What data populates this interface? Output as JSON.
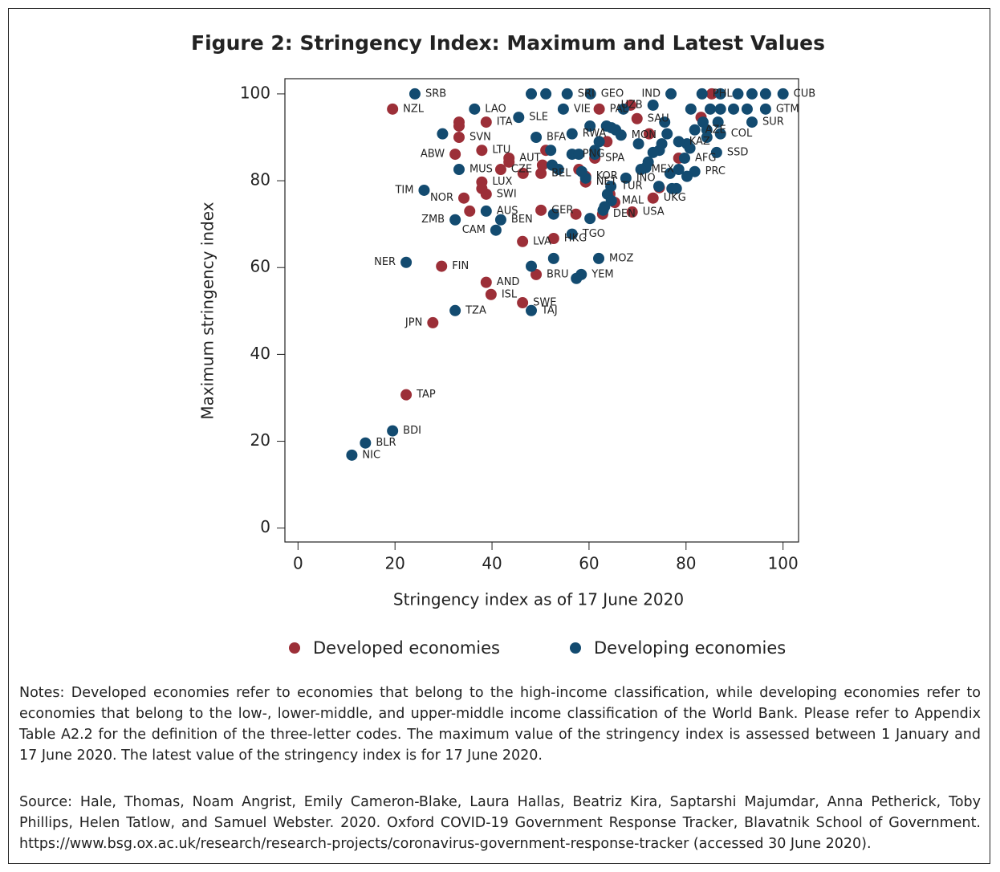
{
  "chart_data": {
    "type": "scatter",
    "title": "Figure 2: Stringency Index: Maximum and Latest Values",
    "xlabel": "Stringency index as of 17 June 2020",
    "ylabel": "Maximum stringency index",
    "xlim": [
      -2.7,
      103.2
    ],
    "ylim": [
      -3.2,
      103.5
    ],
    "xticks": [
      0,
      20,
      40,
      60,
      80,
      100
    ],
    "yticks": [
      0,
      20,
      40,
      60,
      80,
      100
    ],
    "series": [
      {
        "name": "Developed economies",
        "color": "#9c2f38",
        "x": [
          19.5,
          38.8,
          33.2,
          33.2,
          33.2,
          37.9,
          32.4,
          43.5,
          43.5,
          41.8,
          46.4,
          37.9,
          38.8,
          37.9,
          34.2,
          35.4,
          29.6,
          27.8,
          22.3,
          38.8,
          39.8,
          46.3,
          46.3,
          52.7,
          49.1,
          50.1,
          57.3,
          62.8,
          68.9,
          73.2,
          74.5,
          59.3,
          59.3,
          61.2,
          50.1,
          51.1,
          50.4,
          62.1,
          68.6,
          63.7,
          65.3,
          64.3,
          72.4,
          78.5,
          83.1,
          85.3,
          57.9,
          69.9
        ],
        "values": [
          96.5,
          93.5,
          93.5,
          92.6,
          90,
          87,
          86.1,
          85.2,
          84.3,
          82.6,
          81.7,
          79.7,
          76.9,
          78.2,
          76,
          73,
          60.3,
          47.3,
          30.7,
          56.6,
          53.8,
          51.9,
          66,
          66.7,
          58.4,
          73.2,
          72.3,
          72.3,
          72.8,
          76,
          78.4,
          81,
          79.7,
          85.2,
          81.7,
          87,
          83.6,
          96.5,
          97.4,
          89,
          75,
          76.9,
          90.8,
          85.2,
          94.6,
          100,
          82.6,
          94.3
        ],
        "labels": [
          "NZL",
          "ITA",
          null,
          null,
          "SVN",
          "LTU",
          "ABW",
          "AUT",
          null,
          "CZE",
          null,
          "LUX",
          "SWI",
          null,
          "NOR",
          null,
          "FIN",
          "JPN",
          "TAP",
          "AND",
          "ISL",
          "SWE",
          "LVA",
          "HKG",
          "BRU",
          "GER",
          null,
          "DEN",
          "USA",
          "UKG",
          null,
          "KOR",
          "NET",
          "SPA",
          "BEL",
          null,
          null,
          "PAL",
          null,
          null,
          null,
          null,
          null,
          null,
          null,
          null,
          null,
          "SAU"
        ]
      },
      {
        "name": "Developing economies",
        "color": "#134b70",
        "x": [
          24.1,
          36.4,
          29.8,
          45.5,
          49.1,
          33.2,
          26,
          32.4,
          38.8,
          41.8,
          40.8,
          22.3,
          32.4,
          48.1,
          58.4,
          57.4,
          62,
          56.5,
          19.5,
          13.9,
          11.1,
          48.1,
          51.1,
          55.5,
          60.3,
          76.9,
          83.3,
          87.1,
          90.7,
          93.6,
          96.4,
          100,
          85,
          87.1,
          89.8,
          96.4,
          92.6,
          93.6,
          81,
          83.5,
          86.6,
          84.3,
          87.1,
          84.3,
          86.3,
          81.8,
          80.2,
          78.5,
          79.7,
          80.8,
          80.2,
          78.5,
          81.8,
          76.1,
          75.6,
          75,
          74.5,
          73.2,
          72.2,
          71.7,
          70.7,
          76.7,
          77.1,
          74.4,
          78,
          67.6,
          64.5,
          63.8,
          64.6,
          63.2,
          62.9,
          60.2,
          59.3,
          58.5,
          61.2,
          56.5,
          57.9,
          62.1,
          56.5,
          60.2,
          63.6,
          64.6,
          65.5,
          66.6,
          54.7,
          67.1,
          73.2,
          52.1,
          52.4,
          53.7,
          52.7,
          52.7,
          48.1,
          70.2,
          61.2
        ],
        "values": [
          100,
          96.5,
          90.8,
          94.6,
          90,
          82.6,
          77.8,
          71,
          73,
          71,
          68.6,
          61.2,
          50.1,
          50.1,
          58.4,
          57.5,
          62.1,
          67.7,
          22.4,
          19.6,
          16.8,
          100,
          100,
          100,
          100,
          100,
          100,
          100,
          100,
          100,
          100,
          100,
          96.5,
          96.5,
          96.5,
          96.5,
          96.5,
          93.5,
          96.5,
          93.5,
          93.5,
          91.7,
          90.8,
          90,
          86.5,
          82.1,
          81,
          82.6,
          85.2,
          87.5,
          88.5,
          89,
          91.7,
          90.8,
          93.5,
          88.5,
          87,
          86.5,
          84.3,
          83,
          82.6,
          81.7,
          78.2,
          78.7,
          78.2,
          80.6,
          78.7,
          76.9,
          75.4,
          74,
          73.2,
          71.3,
          80.6,
          82.1,
          86.1,
          86.1,
          86.1,
          89,
          90.8,
          92.6,
          92.6,
          92.2,
          91.7,
          90.5,
          96.5,
          96.5,
          97.4,
          87,
          83.6,
          82.6,
          72.3,
          62.1,
          60.3,
          88.5,
          87
        ],
        "labels": [
          "SRB",
          "LAO",
          null,
          "SLE",
          "BFA",
          "MUS",
          "TIM",
          "ZMB",
          "AUS",
          "BEN",
          "CAM",
          "NER",
          "TZA",
          "TAJ",
          "YEM",
          null,
          "MOZ",
          "TGO",
          "BDI",
          "BLR",
          "NIC",
          null,
          null,
          "SRI",
          "GEO",
          "IND",
          "PHL",
          null,
          null,
          null,
          null,
          "CUB",
          null,
          null,
          null,
          "GTM",
          null,
          "SUR",
          null,
          null,
          null,
          null,
          "COL",
          null,
          "SSD",
          "PRC",
          null,
          null,
          "AFG",
          null,
          null,
          "KAZ",
          "AZE",
          null,
          null,
          null,
          null,
          null,
          null,
          null,
          "MEX",
          null,
          null,
          null,
          null,
          "INO",
          "TUR",
          null,
          "MAL",
          null,
          null,
          null,
          null,
          null,
          null,
          "PNG",
          null,
          null,
          "RWA",
          null,
          null,
          null,
          null,
          "MON",
          "VIE",
          null,
          "UZB",
          null,
          null,
          null,
          null,
          null,
          null,
          null,
          null
        ]
      }
    ]
  },
  "notes": "Notes: Developed economies refer to economies that belong to the high-income classification, while developing economies refer to economies that belong to the low-, lower-middle, and upper-middle income classification of the World Bank. Please refer to Appendix Table A2.2 for the definition of the three-letter codes. The maximum value of the stringency index is assessed between 1 January and 17 June 2020. The latest value of the stringency index is for 17 June 2020.",
  "source": "Source: Hale, Thomas, Noam Angrist, Emily Cameron-Blake, Laura Hallas, Beatriz Kira, Saptarshi Majumdar, Anna Petherick, Toby Phillips, Helen Tatlow, and Samuel Webster. 2020. Oxford COVID-19 Government Response Tracker, Blavatnik School of Government. https://www.bsg.ox.ac.uk/research/research-projects/coronavirus-government-response-tracker (accessed 30 June 2020)."
}
